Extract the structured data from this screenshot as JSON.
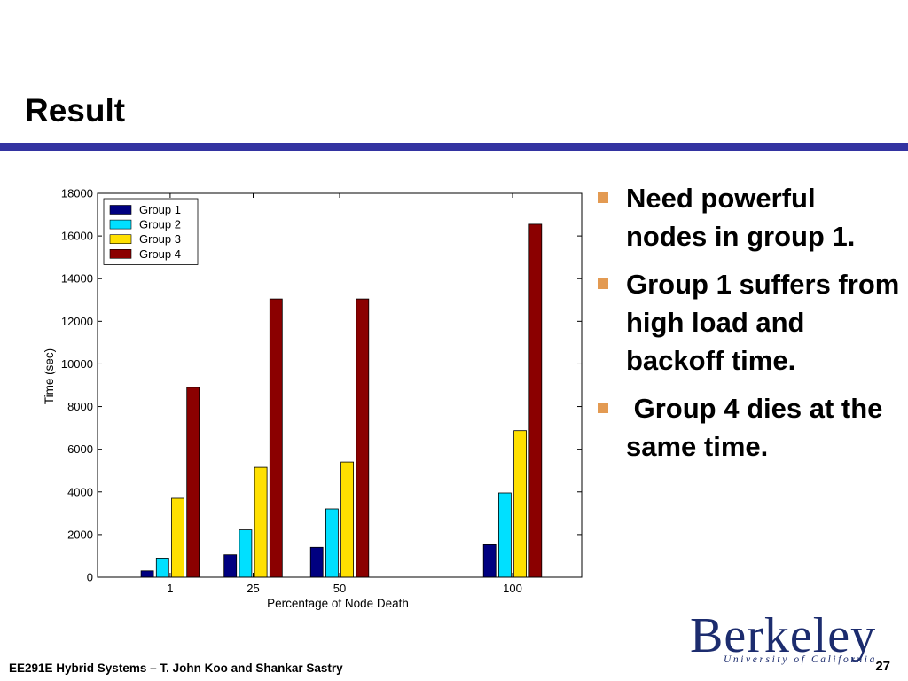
{
  "slide": {
    "title": "Result",
    "bullets": [
      "Need powerful nodes in group 1.",
      "Group 1 suffers from  high load and backoff time.",
      " Group 4 dies at the same time."
    ],
    "footer": "EE291E Hybrid Systems – T. John Koo and Shankar Sastry",
    "page_number": "27",
    "logo_text": "Berkeley",
    "logo_subtext": "University of California",
    "accent_color": "#3333a1",
    "bullet_color": "#e39a52"
  },
  "chart_data": {
    "type": "bar",
    "title": "",
    "xlabel": "Percentage of Node Death",
    "ylabel": "Time (sec)",
    "categories": [
      "1",
      "25",
      "50",
      "100"
    ],
    "x": [
      1,
      25,
      50,
      100
    ],
    "xlim": [
      -20,
      120
    ],
    "ylim": [
      0,
      18000
    ],
    "yticks": [
      0,
      2000,
      4000,
      6000,
      8000,
      10000,
      12000,
      14000,
      16000,
      18000
    ],
    "grid": false,
    "legend_position": "top-left",
    "series": [
      {
        "name": "Group 1",
        "color": "#000080",
        "values": [
          300,
          1050,
          1400,
          1520
        ]
      },
      {
        "name": "Group 2",
        "color": "#00e0ff",
        "values": [
          900,
          2220,
          3200,
          3950
        ]
      },
      {
        "name": "Group 3",
        "color": "#ffe000",
        "values": [
          3700,
          5150,
          5400,
          6870
        ]
      },
      {
        "name": "Group 4",
        "color": "#8b0000",
        "values": [
          8900,
          13050,
          13050,
          16550
        ]
      }
    ]
  }
}
